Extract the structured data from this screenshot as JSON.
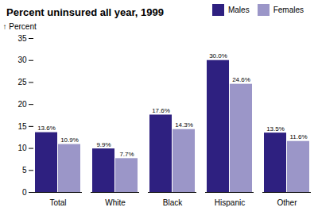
{
  "chart_data": {
    "type": "bar",
    "title": "Percent uninsured all year, 1999",
    "categories": [
      "Total",
      "White",
      "Black",
      "Hispanic",
      "Other"
    ],
    "series": [
      {
        "name": "Males",
        "color": "#2e2080",
        "values": [
          13.6,
          9.9,
          17.6,
          30.0,
          13.5
        ],
        "value_labels": [
          "13.6%",
          "9.9%",
          "17.6%",
          "30.0%",
          "13.5%"
        ]
      },
      {
        "name": "Females",
        "color": "#9b96c8",
        "values": [
          10.9,
          7.7,
          14.3,
          24.6,
          11.6
        ],
        "value_labels": [
          "10.9%",
          "7.7%",
          "14.3%",
          "24.6%",
          "11.6%"
        ]
      }
    ],
    "ylabel": "Percent",
    "ylim": [
      0,
      35
    ],
    "yticks": [
      0,
      5,
      10,
      15,
      20,
      25,
      30,
      35
    ],
    "legend": "upper right",
    "data_labels": true,
    "grid": false
  }
}
